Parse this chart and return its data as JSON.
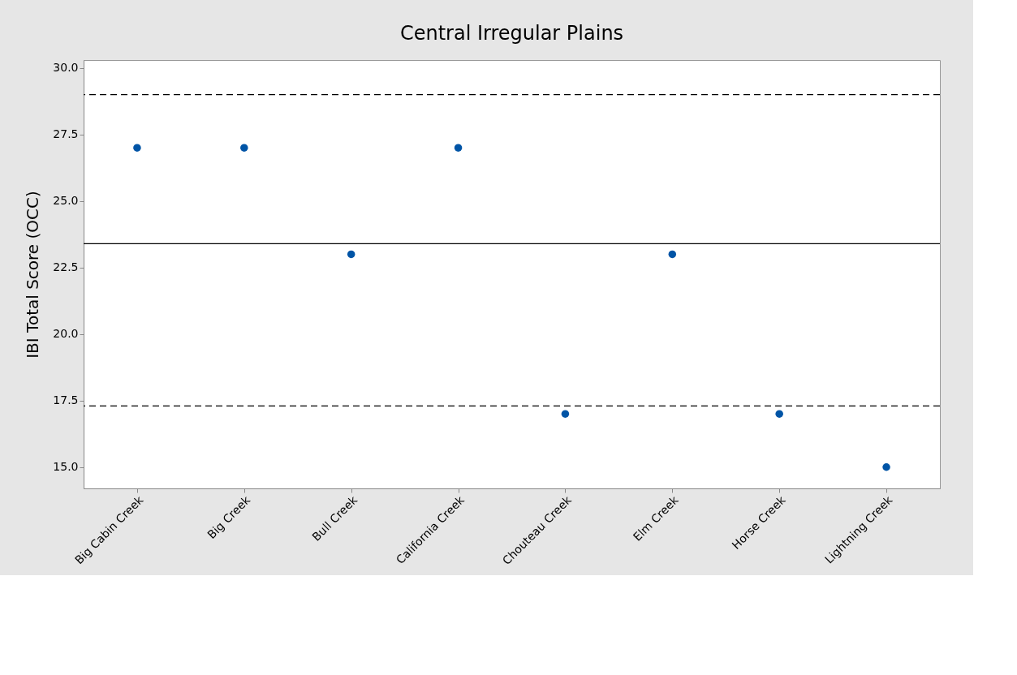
{
  "chart_data": {
    "type": "scatter",
    "title": "Central Irregular Plains",
    "ylabel": "IBI Total Score (OCC)",
    "categories": [
      "Big Cabin Creek",
      "Big Creek",
      "Bull Creek",
      "California Creek",
      "Chouteau Creek",
      "Elm Creek",
      "Horse Creek",
      "Lightning Creek"
    ],
    "series": [
      {
        "color": "#0054a6",
        "values": [
          27,
          27,
          23,
          27,
          17,
          23,
          17,
          15
        ]
      }
    ],
    "ylim": [
      14.2,
      30.3
    ],
    "yticks": [
      {
        "value": 15,
        "label": "15.0"
      },
      {
        "value": 17.5,
        "label": "17.5"
      },
      {
        "value": 20,
        "label": "20.0"
      },
      {
        "value": 22.5,
        "label": "22.5"
      },
      {
        "value": 25,
        "label": "25.0"
      },
      {
        "value": 27.5,
        "label": "27.5"
      },
      {
        "value": 30,
        "label": "30.0"
      }
    ],
    "ref_lines": [
      {
        "axis": "y",
        "value": 29.0,
        "line_style": "dashed",
        "color": "#000000"
      },
      {
        "axis": "y",
        "value": 23.4,
        "line_style": "solid",
        "color": "#000000"
      },
      {
        "axis": "y",
        "value": 17.3,
        "line_style": "dashed",
        "color": "#000000"
      }
    ],
    "marker": "circle",
    "grid": false
  }
}
